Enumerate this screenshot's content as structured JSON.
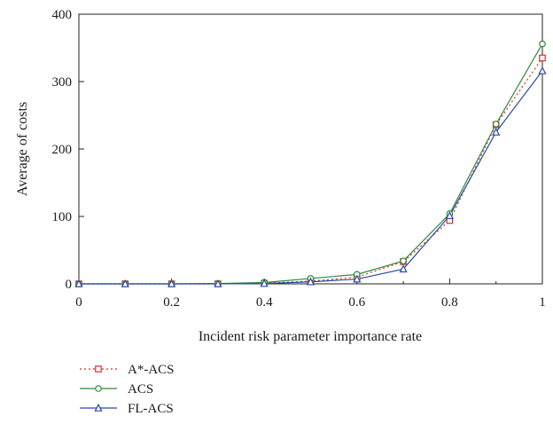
{
  "chart_data": {
    "type": "line",
    "title": "",
    "xlabel": "Incident risk parameter importance rate",
    "ylabel": "Average of costs",
    "xlim": [
      0,
      1
    ],
    "ylim": [
      0,
      400
    ],
    "xticks": [
      "0",
      "0.2",
      "0.4",
      "0.6",
      "0.8",
      "1"
    ],
    "yticks": [
      "0",
      "100",
      "200",
      "300",
      "400"
    ],
    "grid": false,
    "legend_position": "bottom-left",
    "x": [
      0,
      0.1,
      0.2,
      0.3,
      0.4,
      0.5,
      0.6,
      0.7,
      0.8,
      0.9,
      1.0
    ],
    "series": [
      {
        "name": "A*-ACS",
        "color": "#d0312d",
        "marker": "square",
        "line_style": "dotted",
        "values": [
          0,
          0,
          0,
          0,
          1,
          4,
          10,
          33,
          94,
          236,
          335
        ]
      },
      {
        "name": "ACS",
        "color": "#2e8b3a",
        "marker": "circle",
        "line_style": "solid",
        "values": [
          0,
          0,
          0,
          0.5,
          2,
          8,
          14,
          34,
          104,
          237,
          356
        ]
      },
      {
        "name": "FL-ACS",
        "color": "#2a4aa8",
        "marker": "triangle",
        "line_style": "solid",
        "values": [
          0,
          0,
          0,
          0,
          0.5,
          3,
          7,
          22,
          101,
          225,
          316
        ]
      }
    ]
  }
}
